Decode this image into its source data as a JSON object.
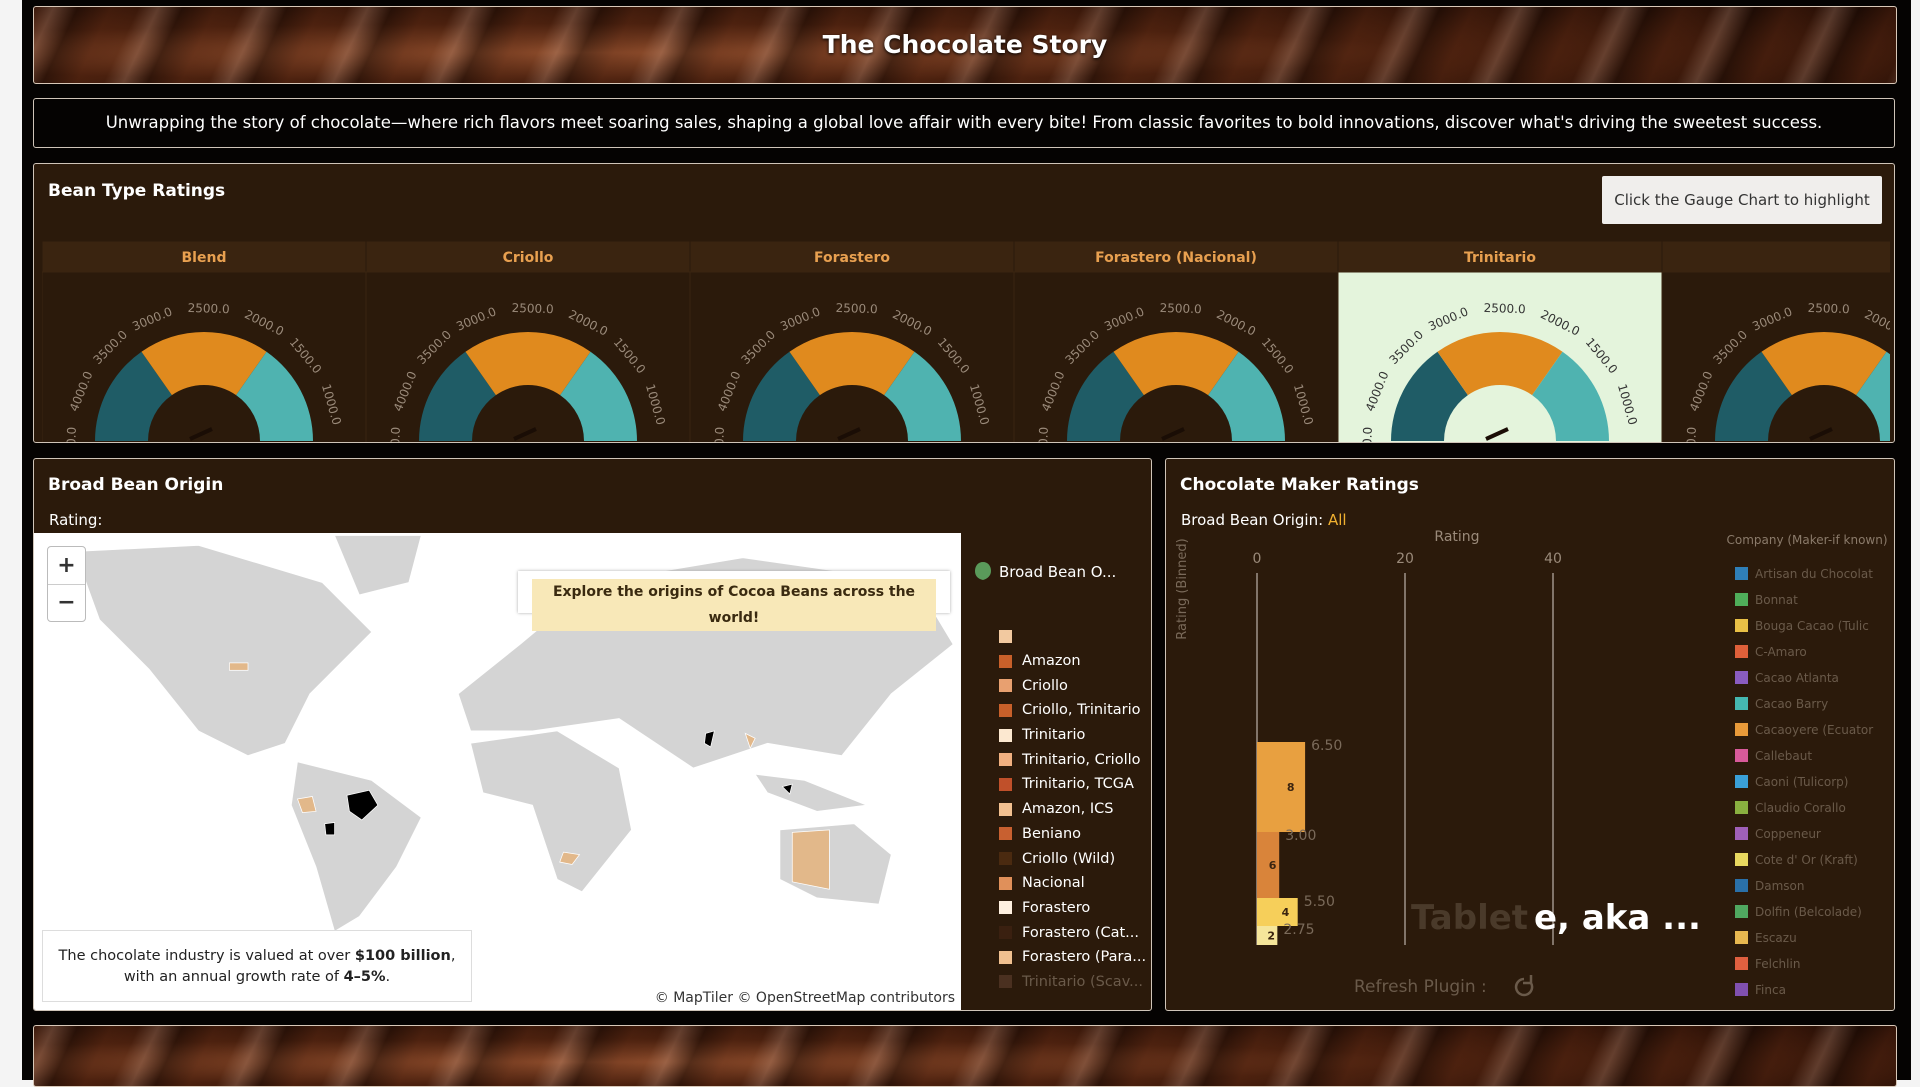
{
  "header": {
    "title": "The Chocolate Story"
  },
  "description": "Unwrapping the story of chocolate—where rich flavors meet soaring sales, shaping a global love affair with every bite! From classic favorites to bold innovations, discover what's driving the sweetest success.",
  "bean_ratings": {
    "title": "Bean Type Ratings",
    "button": "Click the Gauge Chart to highlight",
    "gauges": [
      "Blend",
      "Criollo",
      "Forastero",
      "Forastero (Nacional)",
      "Trinitario"
    ],
    "gauge_ticks": [
      "0.0",
      "4000.0",
      "3500.0",
      "3000.0",
      "2500.0",
      "2000.0",
      "1500.0",
      "1000.0"
    ]
  },
  "origin_map": {
    "title": "Broad Bean Origin",
    "filter_label": "Rating:",
    "zoom_in": "+",
    "zoom_out": "−",
    "callout": "Explore the origins of Cocoa Beans across the world!",
    "legend_title": "Broad Bean O...",
    "legend": [
      {
        "color": "#f2c9a0"
      },
      {
        "label": "Amazon",
        "color": "#c8602a"
      },
      {
        "label": "Criollo",
        "color": "#e8a070"
      },
      {
        "label": "Criollo, Trinitario",
        "color": "#c8602a"
      },
      {
        "label": "Trinitario",
        "color": "#fce8d0"
      },
      {
        "label": "Trinitario, Criollo",
        "color": "#f0b080"
      },
      {
        "label": "Trinitario, TCGA",
        "color": "#c0502a"
      },
      {
        "label": "Amazon, ICS",
        "color": "#f2c090"
      },
      {
        "label": "Beniano",
        "color": "#c86030"
      },
      {
        "label": "Criollo (Wild)",
        "color": "#4a2a10"
      },
      {
        "label": "Nacional",
        "color": "#e0905a"
      },
      {
        "label": "Forastero",
        "color": "#fff0e0"
      },
      {
        "label": "Forastero (Cat...",
        "color": "#3a2010"
      },
      {
        "label": "Forastero (Para...",
        "color": "#f0c090"
      },
      {
        "label": "Trinitario (Scav...",
        "color": "#4a3020"
      }
    ],
    "note": [
      "The chocolate industry is valued at over ",
      "$100 billion",
      ", with an annual growth rate of ",
      "4–5%",
      "."
    ],
    "attribution": "© MapTiler © OpenStreetMap contributors"
  },
  "maker_ratings": {
    "title": "Chocolate Maker Ratings",
    "filter_label": "Broad Bean Origin:",
    "filter_value": "All",
    "x_label": "Rating",
    "y_label": "Rating (Binned)",
    "xlim": [
      0,
      40
    ],
    "xticks": [
      0,
      20,
      40
    ],
    "bars": [
      {
        "value": 6.5,
        "value_label": "6.50",
        "count": 8,
        "color": "#e8a040"
      },
      {
        "value": 3,
        "value_label": "3.00",
        "count": 6,
        "color": "#d9843a"
      },
      {
        "value": 5.5,
        "value_label": "5.50",
        "count": 4,
        "color": "#f6cf5a"
      },
      {
        "value": 2.75,
        "value_label": "2.75",
        "count": 2,
        "color": "#f5e59a"
      }
    ],
    "overlay": [
      "Tablet",
      "e, aka ..."
    ],
    "refresh": "Refresh Plugin :",
    "legend_title": "Company (Maker-if known)",
    "companies": [
      {
        "name": "Artisan du Chocolat",
        "color": "#2f7fb8"
      },
      {
        "name": "Bonnat",
        "color": "#4fae5a"
      },
      {
        "name": "Bouga Cacao (Tulic",
        "color": "#e9c046"
      },
      {
        "name": "C-Amaro",
        "color": "#e0603a"
      },
      {
        "name": "Cacao Atlanta",
        "color": "#8a5cc0"
      },
      {
        "name": "Cacao Barry",
        "color": "#45b8b0"
      },
      {
        "name": "Cacaoyere (Ecuator",
        "color": "#e89a3a"
      },
      {
        "name": "Callebaut",
        "color": "#d85a9a"
      },
      {
        "name": "Caoni (Tulicorp)",
        "color": "#3aa0d8"
      },
      {
        "name": "Claudio Corallo",
        "color": "#8ab040"
      },
      {
        "name": "Coppeneur",
        "color": "#a060b8"
      },
      {
        "name": "Cote d' Or (Kraft)",
        "color": "#e8d860"
      },
      {
        "name": "Damson",
        "color": "#2a70a8"
      },
      {
        "name": "Dolfin (Belcolade)",
        "color": "#50a860"
      },
      {
        "name": "Escazu",
        "color": "#e8b850"
      },
      {
        "name": "Felchlin",
        "color": "#e06040"
      },
      {
        "name": "Finca",
        "color": "#8050b0"
      }
    ]
  }
}
